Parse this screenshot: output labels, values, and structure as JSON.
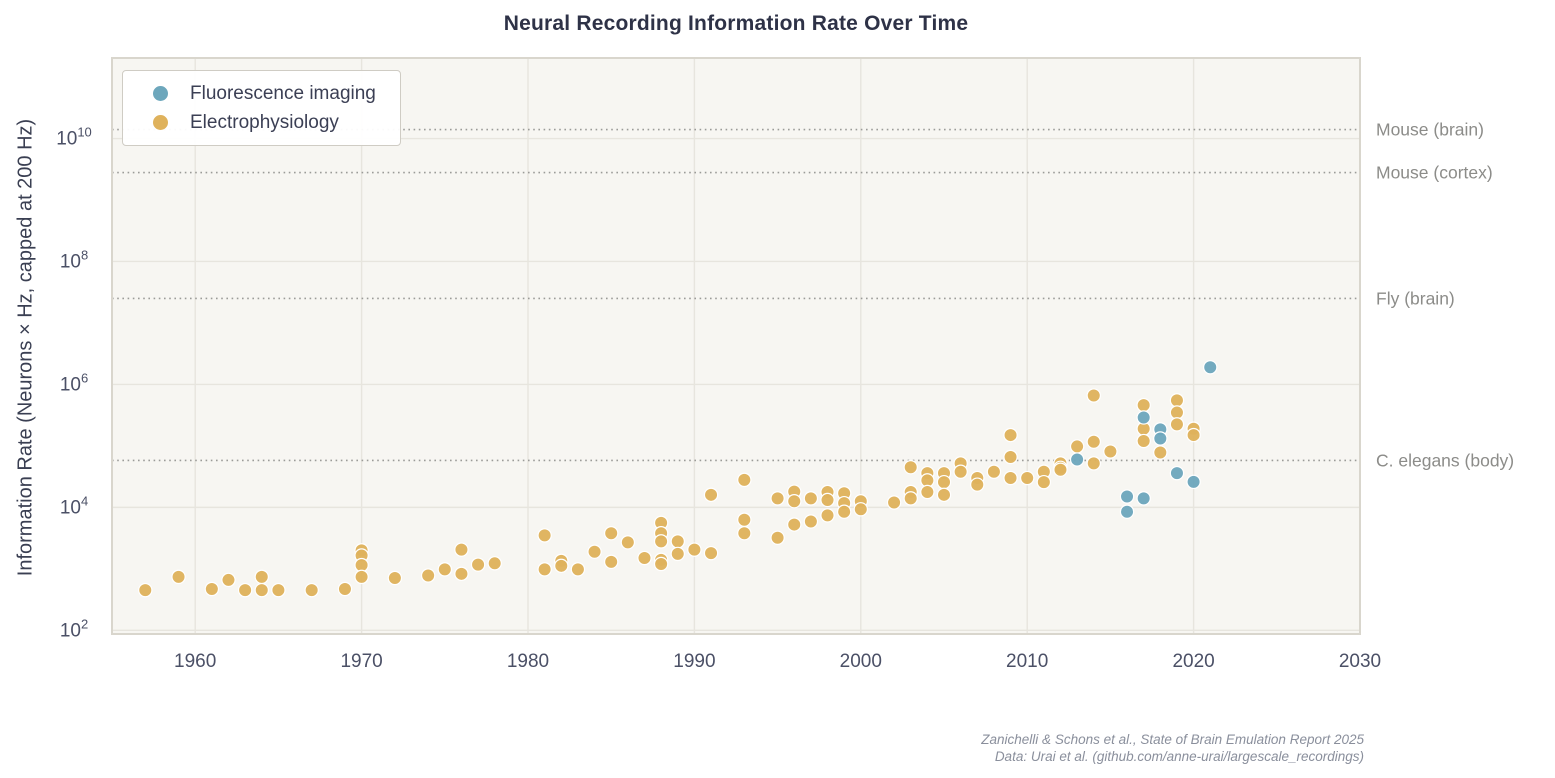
{
  "title": "Neural Recording Information Rate Over Time",
  "legend": {
    "items": [
      {
        "label": "Fluorescence imaging",
        "color": "#6da7bc"
      },
      {
        "label": "Electrophysiology",
        "color": "#dfb25c"
      }
    ]
  },
  "footer": {
    "line1": "Zanichelli & Schons et al., State of Brain Emulation Report 2025",
    "line2": "Data: Urai et al. (github.com/anne-urai/largescale_recordings)"
  },
  "colors": {
    "plot_background": "#f7f6f2",
    "grid": "#e7e5de",
    "spine": "#d9d6cd",
    "tick_label": "#4b5066",
    "reference_line": "#9b9b98",
    "reference_label": "#8c8c89",
    "fluorescence": "#6da7bc",
    "electrophysiology": "#dfb25c"
  },
  "chart_data": {
    "type": "scatter",
    "title": "Neural Recording Information Rate Over Time",
    "xlabel": "",
    "ylabel": "Information Rate (Neurons × Hz, capped at 200 Hz)",
    "x_ticks": [
      1960,
      1970,
      1980,
      1990,
      2000,
      2010,
      2020,
      2030
    ],
    "y_tick_exponents": [
      2,
      4,
      6,
      8,
      10
    ],
    "xlim": [
      1955,
      2030
    ],
    "ylim_log10": [
      1.94,
      11.31
    ],
    "yscale": "log",
    "grid": true,
    "legend_position": "upper left",
    "reference_lines": [
      {
        "label": "Mouse (brain)",
        "value": 14000000000
      },
      {
        "label": "Mouse (cortex)",
        "value": 2800000000
      },
      {
        "label": "Fly (brain)",
        "value": 25000000
      },
      {
        "label": "C. elegans (body)",
        "value": 58000
      }
    ],
    "series": [
      {
        "name": "Electrophysiology",
        "color": "#dfb25c",
        "points": [
          [
            1957,
            450
          ],
          [
            1959,
            740
          ],
          [
            1961,
            470
          ],
          [
            1962,
            660
          ],
          [
            1963,
            450
          ],
          [
            1964,
            740
          ],
          [
            1964,
            450
          ],
          [
            1965,
            450
          ],
          [
            1967,
            450
          ],
          [
            1969,
            470
          ],
          [
            1970,
            2000
          ],
          [
            1970,
            1650
          ],
          [
            1970,
            1150
          ],
          [
            1970,
            740
          ],
          [
            1972,
            710
          ],
          [
            1974,
            780
          ],
          [
            1975,
            980
          ],
          [
            1976,
            2050
          ],
          [
            1976,
            830
          ],
          [
            1977,
            1170
          ],
          [
            1978,
            1230
          ],
          [
            1981,
            3500
          ],
          [
            1981,
            980
          ],
          [
            1982,
            1350
          ],
          [
            1982,
            1120
          ],
          [
            1983,
            980
          ],
          [
            1984,
            1900
          ],
          [
            1985,
            3800
          ],
          [
            1985,
            1300
          ],
          [
            1986,
            2700
          ],
          [
            1987,
            1500
          ],
          [
            1988,
            5600
          ],
          [
            1988,
            3800
          ],
          [
            1988,
            2800
          ],
          [
            1988,
            1400
          ],
          [
            1988,
            1200
          ],
          [
            1989,
            2800
          ],
          [
            1989,
            1750
          ],
          [
            1990,
            2050
          ],
          [
            1991,
            16000
          ],
          [
            1991,
            1800
          ],
          [
            1993,
            28000
          ],
          [
            1993,
            6300
          ],
          [
            1993,
            3800
          ],
          [
            1995,
            14000
          ],
          [
            1995,
            3200
          ],
          [
            1996,
            18000
          ],
          [
            1996,
            12600
          ],
          [
            1996,
            5250
          ],
          [
            1997,
            14000
          ],
          [
            1997,
            5900
          ],
          [
            1998,
            17800
          ],
          [
            1998,
            13200
          ],
          [
            1998,
            7400
          ],
          [
            1999,
            17000
          ],
          [
            1999,
            11700
          ],
          [
            1999,
            8500
          ],
          [
            2000,
            12600
          ],
          [
            2000,
            9300
          ],
          [
            2002,
            12000
          ],
          [
            2003,
            45000
          ],
          [
            2003,
            17800
          ],
          [
            2003,
            14000
          ],
          [
            2004,
            36000
          ],
          [
            2004,
            27500
          ],
          [
            2004,
            17800
          ],
          [
            2005,
            36000
          ],
          [
            2005,
            25700
          ],
          [
            2005,
            16000
          ],
          [
            2006,
            52000
          ],
          [
            2006,
            38000
          ],
          [
            2007,
            30000
          ],
          [
            2007,
            23400
          ],
          [
            2008,
            38000
          ],
          [
            2009,
            150000
          ],
          [
            2009,
            66000
          ],
          [
            2009,
            30000
          ],
          [
            2010,
            30000
          ],
          [
            2011,
            38000
          ],
          [
            2011,
            25700
          ],
          [
            2012,
            52000
          ],
          [
            2012,
            44000
          ],
          [
            2012,
            41000
          ],
          [
            2013,
            98000
          ],
          [
            2014,
            660000
          ],
          [
            2014,
            117000
          ],
          [
            2014,
            52000
          ],
          [
            2015,
            81000
          ],
          [
            2017,
            460000
          ],
          [
            2017,
            190000
          ],
          [
            2017,
            120000
          ],
          [
            2018,
            78000
          ],
          [
            2019,
            550000
          ],
          [
            2019,
            350000
          ],
          [
            2019,
            224000
          ],
          [
            2020,
            190000
          ],
          [
            2020,
            150000
          ]
        ]
      },
      {
        "name": "Fluorescence imaging",
        "color": "#6da7bc",
        "points": [
          [
            2013,
            60000
          ],
          [
            2016,
            15000
          ],
          [
            2016,
            8500
          ],
          [
            2017,
            290000
          ],
          [
            2017,
            14000
          ],
          [
            2018,
            186000
          ],
          [
            2018,
            132000
          ],
          [
            2019,
            36000
          ],
          [
            2020,
            26000
          ],
          [
            2021,
            1900000
          ]
        ]
      }
    ]
  }
}
